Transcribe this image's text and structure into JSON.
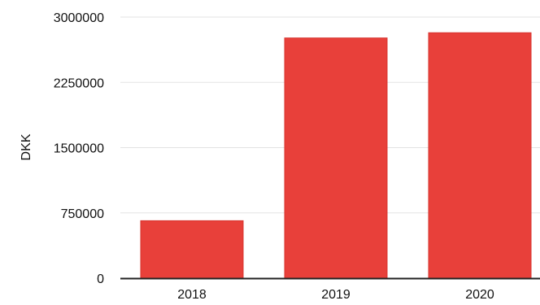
{
  "chart_data": {
    "type": "bar",
    "categories": [
      "2018",
      "2019",
      "2020"
    ],
    "values": [
      660000,
      2760000,
      2820000
    ],
    "title": "",
    "xlabel": "",
    "ylabel": "DKK",
    "ylim": [
      0,
      3000000
    ],
    "yticks": [
      "0",
      "750000",
      "1500000",
      "2250000",
      "3000000"
    ],
    "ytick_values": [
      0,
      750000,
      1500000,
      2250000,
      3000000
    ],
    "grid": true,
    "legend": "none",
    "colors": {
      "bar": "#e8403a",
      "bar_edge": "#d7342f",
      "grid": "#e3e3e3",
      "axis": "#222222"
    }
  }
}
